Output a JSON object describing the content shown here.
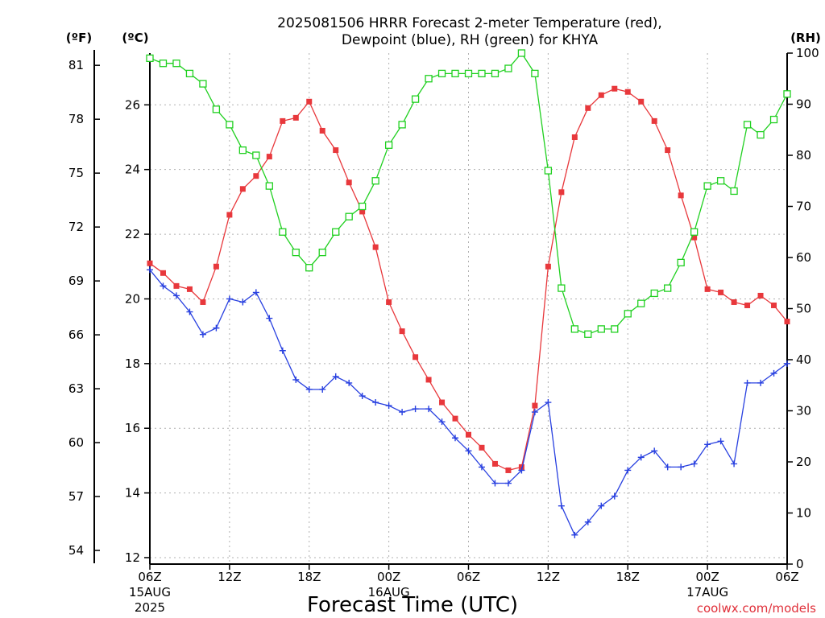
{
  "title": {
    "line1": "2025081506 HRRR Forecast 2-meter Temperature (red),",
    "line2": "Dewpoint (blue), RH (green) for KHYA"
  },
  "units": {
    "fahrenheit": "(ºF)",
    "celsius": "(ºC)",
    "rh": "(RH)"
  },
  "credit": "coolwx.com/models",
  "colors": {
    "temperature": "#e8383c",
    "dewpoint": "#2840e0",
    "rh": "#20d020",
    "grid": "#b0b0b0"
  },
  "chart_data": {
    "type": "line",
    "xlabel": "Forecast Time (UTC)",
    "x_ticks": [
      {
        "hour": 0,
        "label": "06Z",
        "date": "15AUG",
        "year": "2025"
      },
      {
        "hour": 6,
        "label": "12Z"
      },
      {
        "hour": 12,
        "label": "18Z"
      },
      {
        "hour": 18,
        "label": "00Z",
        "date": "16AUG"
      },
      {
        "hour": 24,
        "label": "06Z"
      },
      {
        "hour": 30,
        "label": "12Z"
      },
      {
        "hour": 36,
        "label": "18Z"
      },
      {
        "hour": 42,
        "label": "00Z",
        "date": "17AUG"
      },
      {
        "hour": 48,
        "label": "06Z"
      }
    ],
    "xlim": [
      0,
      48
    ],
    "y_celsius": {
      "ylim": [
        11.8,
        27.6
      ],
      "ticks": [
        12,
        14,
        16,
        18,
        20,
        22,
        24,
        26
      ]
    },
    "y_fahrenheit": {
      "ticks": [
        54,
        57,
        60,
        63,
        66,
        69,
        72,
        75,
        78,
        81
      ]
    },
    "y_rh": {
      "ylim": [
        0,
        100
      ],
      "ticks": [
        0,
        10,
        20,
        30,
        40,
        50,
        60,
        70,
        80,
        90,
        100
      ]
    },
    "grid": true,
    "series": [
      {
        "name": "Temperature",
        "axis": "celsius",
        "marker": "filled-square",
        "values": [
          21.1,
          20.8,
          20.4,
          20.3,
          19.9,
          21.0,
          22.6,
          23.4,
          23.8,
          24.4,
          25.5,
          25.6,
          26.1,
          25.2,
          24.6,
          23.6,
          22.7,
          21.6,
          19.9,
          19.0,
          18.2,
          17.5,
          16.8,
          16.3,
          15.8,
          15.4,
          14.9,
          14.7,
          14.8,
          16.7,
          21.0,
          23.3,
          25.0,
          25.9,
          26.3,
          26.5,
          26.4,
          26.1,
          25.5,
          24.6,
          23.2,
          21.9,
          20.3,
          20.2,
          19.9,
          19.8,
          20.1,
          19.8,
          19.3
        ]
      },
      {
        "name": "Dewpoint",
        "axis": "celsius",
        "marker": "plus",
        "values": [
          20.9,
          20.4,
          20.1,
          19.6,
          18.9,
          19.1,
          20.0,
          19.9,
          20.2,
          19.4,
          18.4,
          17.5,
          17.2,
          17.2,
          17.6,
          17.4,
          17.0,
          16.8,
          16.7,
          16.5,
          16.6,
          16.6,
          16.2,
          15.7,
          15.3,
          14.8,
          14.3,
          14.3,
          14.7,
          16.5,
          16.8,
          13.6,
          12.7,
          13.1,
          13.6,
          13.9,
          14.7,
          15.1,
          15.3,
          14.8,
          14.8,
          14.9,
          15.5,
          15.6,
          14.9,
          17.4,
          17.4,
          17.7,
          18.0
        ]
      },
      {
        "name": "RH",
        "axis": "rh",
        "marker": "open-square",
        "values": [
          99,
          98,
          98,
          96,
          94,
          89,
          86,
          81,
          80,
          74,
          65,
          61,
          58,
          61,
          65,
          68,
          70,
          75,
          82,
          86,
          91,
          95,
          96,
          96,
          96,
          96,
          96,
          97,
          100,
          96,
          77,
          54,
          46,
          45,
          46,
          46,
          49,
          51,
          53,
          54,
          59,
          65,
          74,
          75,
          73,
          86,
          84,
          87,
          92
        ]
      }
    ]
  }
}
